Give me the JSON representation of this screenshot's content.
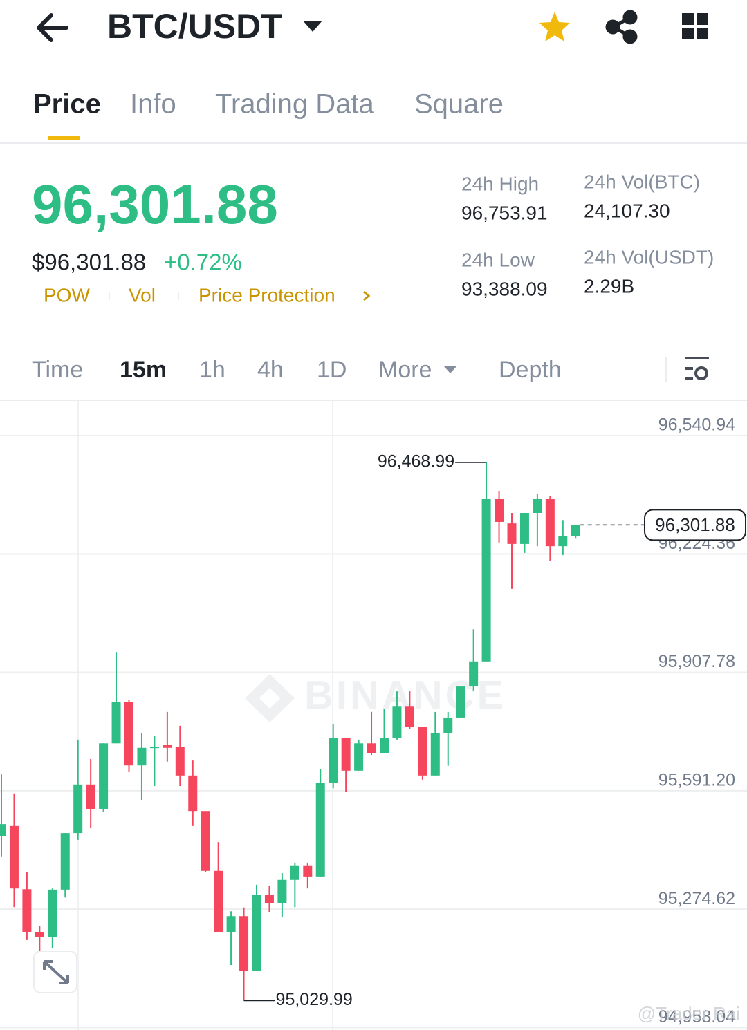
{
  "header": {
    "pair": "BTC/USDT"
  },
  "tabs": [
    "Price",
    "Info",
    "Trading Data",
    "Square"
  ],
  "summary": {
    "price": "96,301.88",
    "usd_price": "$96,301.88",
    "change": "+0.72%",
    "tags": [
      "POW",
      "Vol",
      "Price Protection"
    ]
  },
  "stats": [
    {
      "label": "24h High",
      "value": "96,753.91"
    },
    {
      "label": "24h Vol(BTC)",
      "value": "24,107.30"
    },
    {
      "label": "24h Low",
      "value": "93,388.09"
    },
    {
      "label": "24h Vol(USDT)",
      "value": "2.29B"
    }
  ],
  "intervals": [
    "Time",
    "15m",
    "1h",
    "4h",
    "1D",
    "More",
    "Depth"
  ],
  "chart_data": {
    "type": "candlestick",
    "up_color": "#2ebd85",
    "down_color": "#f6465d",
    "ylim": [
      94951.5,
      96633.4
    ],
    "yticks": [
      {
        "value": 96540.94,
        "label": "96,540.94"
      },
      {
        "value": 96224.36,
        "label": "96,224.36"
      },
      {
        "value": 95907.78,
        "label": "95,907.78"
      },
      {
        "value": 95591.2,
        "label": "95,591.20"
      },
      {
        "value": 95274.62,
        "label": "95,274.62"
      },
      {
        "value": 94958.04,
        "label": "94,958.04"
      }
    ],
    "grid": true,
    "watermark": "BINANCE",
    "high_annotation": {
      "value": 96468.99,
      "label": "96,468.99"
    },
    "low_annotation": {
      "value": 95029.99,
      "label": "95,029.99"
    },
    "last_price": {
      "value": 96301.88,
      "label": "96,301.88"
    },
    "candles": [
      {
        "open": 95469,
        "high": 95635,
        "low": 95414,
        "close": 95502
      },
      {
        "open": 95497,
        "high": 95584,
        "low": 95280,
        "close": 95330
      },
      {
        "open": 95328,
        "high": 95373,
        "low": 95192,
        "close": 95214
      },
      {
        "open": 95214,
        "high": 95229,
        "low": 95164,
        "close": 95201
      },
      {
        "open": 95201,
        "high": 95330,
        "low": 95170,
        "close": 95327
      },
      {
        "open": 95327,
        "high": 95478,
        "low": 95306,
        "close": 95478
      },
      {
        "open": 95478,
        "high": 95728,
        "low": 95460,
        "close": 95608
      },
      {
        "open": 95608,
        "high": 95676,
        "low": 95491,
        "close": 95543
      },
      {
        "open": 95543,
        "high": 95718,
        "low": 95534,
        "close": 95718
      },
      {
        "open": 95718,
        "high": 95962,
        "low": 95718,
        "close": 95829
      },
      {
        "open": 95829,
        "high": 95835,
        "low": 95641,
        "close": 95659
      },
      {
        "open": 95659,
        "high": 95746,
        "low": 95567,
        "close": 95706
      },
      {
        "open": 95706,
        "high": 95737,
        "low": 95604,
        "close": 95709
      },
      {
        "open": 95713,
        "high": 95802,
        "low": 95669,
        "close": 95706
      },
      {
        "open": 95709,
        "high": 95765,
        "low": 95604,
        "close": 95632
      },
      {
        "open": 95632,
        "high": 95672,
        "low": 95497,
        "close": 95537
      },
      {
        "open": 95537,
        "high": 95537,
        "low": 95373,
        "close": 95377
      },
      {
        "open": 95377,
        "high": 95454,
        "low": 95214,
        "close": 95214
      },
      {
        "open": 95214,
        "high": 95269,
        "low": 95125,
        "close": 95256
      },
      {
        "open": 95256,
        "high": 95279,
        "low": 95029.99,
        "close": 95109
      },
      {
        "open": 95109,
        "high": 95340,
        "low": 95109,
        "close": 95312
      },
      {
        "open": 95312,
        "high": 95336,
        "low": 95266,
        "close": 95290
      },
      {
        "open": 95290,
        "high": 95371,
        "low": 95253,
        "close": 95353
      },
      {
        "open": 95353,
        "high": 95399,
        "low": 95280,
        "close": 95390
      },
      {
        "open": 95390,
        "high": 95399,
        "low": 95330,
        "close": 95362
      },
      {
        "open": 95362,
        "high": 95650,
        "low": 95362,
        "close": 95613
      },
      {
        "open": 95613,
        "high": 95770,
        "low": 95598,
        "close": 95733
      },
      {
        "open": 95733,
        "high": 95733,
        "low": 95589,
        "close": 95645
      },
      {
        "open": 95645,
        "high": 95728,
        "low": 95645,
        "close": 95718
      },
      {
        "open": 95718,
        "high": 95802,
        "low": 95687,
        "close": 95691
      },
      {
        "open": 95691,
        "high": 95811,
        "low": 95691,
        "close": 95733
      },
      {
        "open": 95733,
        "high": 95857,
        "low": 95728,
        "close": 95816
      },
      {
        "open": 95816,
        "high": 95857,
        "low": 95756,
        "close": 95761
      },
      {
        "open": 95761,
        "high": 95761,
        "low": 95621,
        "close": 95632
      },
      {
        "open": 95632,
        "high": 95802,
        "low": 95632,
        "close": 95746
      },
      {
        "open": 95746,
        "high": 95802,
        "low": 95658,
        "close": 95787
      },
      {
        "open": 95787,
        "high": 95870,
        "low": 95787,
        "close": 95870
      },
      {
        "open": 95870,
        "high": 96023,
        "low": 95857,
        "close": 95937
      },
      {
        "open": 95937,
        "high": 96468.99,
        "low": 95937,
        "close": 96371
      },
      {
        "open": 96371,
        "high": 96393,
        "low": 96255,
        "close": 96310
      },
      {
        "open": 96306,
        "high": 96334,
        "low": 96131,
        "close": 96251
      },
      {
        "open": 96251,
        "high": 96334,
        "low": 96227,
        "close": 96334
      },
      {
        "open": 96334,
        "high": 96384,
        "low": 96245,
        "close": 96371
      },
      {
        "open": 96371,
        "high": 96380,
        "low": 96205,
        "close": 96245
      },
      {
        "open": 96245,
        "high": 96315,
        "low": 96221,
        "close": 96273
      },
      {
        "open": 96273,
        "high": 96301.88,
        "low": 96267,
        "close": 96301.88
      }
    ]
  },
  "watermark": "@Trader Rai"
}
